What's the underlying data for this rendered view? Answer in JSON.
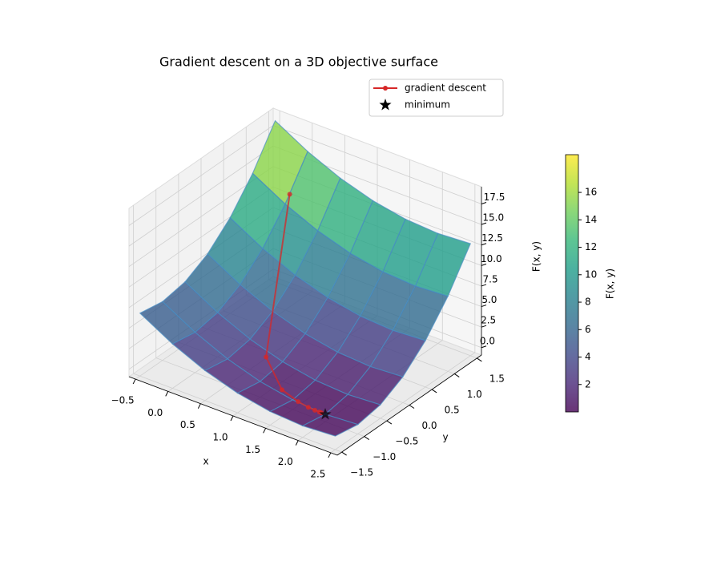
{
  "chart_data": {
    "type": "surface3d",
    "title": "Gradient descent on a 3D objective surface",
    "xlabel": "x",
    "ylabel": "y",
    "zlabel": "F(x, y)",
    "xlim": [
      -0.6,
      2.6
    ],
    "ylim": [
      -1.6,
      1.6
    ],
    "zlim": [
      -0.9,
      19.6
    ],
    "xticks": [
      {
        "value": -0.5,
        "label": "−0.5"
      },
      {
        "value": 0,
        "label": "0.0"
      },
      0.5,
      {
        "value": 1,
        "label": "1.0"
      },
      1.5,
      {
        "value": 2,
        "label": "2.0"
      },
      2.5
    ],
    "yticks": [
      {
        "value": -1.5,
        "label": "−1.5"
      },
      {
        "value": -1,
        "label": "−1.0"
      },
      {
        "value": -0.5,
        "label": "−0.5"
      },
      {
        "value": 0,
        "label": "0.0"
      },
      0.5,
      {
        "value": 1,
        "label": "1.0"
      },
      1.5
    ],
    "zticks": [
      {
        "value": 0,
        "label": "0.0"
      },
      2.5,
      {
        "value": 5,
        "label": "5.0"
      },
      7.5,
      {
        "value": 10,
        "label": "10.0"
      },
      12.5,
      {
        "value": 15,
        "label": "15.0"
      },
      17.5
    ],
    "grid": true,
    "surface": {
      "colormap": "viridis",
      "x": [
        -0.5,
        0,
        0.5,
        1,
        1.5,
        2,
        2.5
      ],
      "y": [
        -1.5,
        -1,
        -0.5,
        0,
        0.5,
        1,
        1.5
      ],
      "z": [
        [
          6.75,
          4.5,
          2.75,
          1.5,
          0.75,
          0.5,
          0.75
        ],
        [
          6.25,
          4,
          2.25,
          1,
          0.25,
          0,
          0.25
        ],
        [
          6.75,
          4.5,
          2.75,
          1.5,
          0.75,
          0.5,
          0.75
        ],
        [
          8.25,
          6,
          4.25,
          3,
          2.25,
          2,
          2.25
        ],
        [
          10.75,
          8.5,
          6.75,
          5.5,
          4.75,
          4.5,
          4.75
        ],
        [
          14.25,
          12,
          10.25,
          9,
          8.25,
          8,
          8.25
        ],
        [
          18.75,
          16.5,
          14.75,
          13.5,
          12.75,
          12.5,
          12.75
        ]
      ]
    },
    "colorbar": {
      "label": "F(x, y)",
      "lim": [
        0,
        18.75
      ],
      "ticks": [
        2,
        4,
        6,
        8,
        10,
        12,
        14,
        16
      ]
    },
    "series": [
      {
        "name": "gradient descent",
        "color": "#d62728",
        "x": [
          0,
          0.8,
          1.28,
          1.57,
          1.74,
          1.84,
          1.91,
          1.94
        ],
        "y": [
          1.1,
          -0.58,
          -0.92,
          -0.98,
          -1,
          -1,
          -1,
          -1
        ],
        "z": [
          12.82,
          1.79,
          0.53,
          0.19,
          0.07,
          0.02,
          0.01,
          0
        ]
      },
      {
        "name": "minimum",
        "color": "#000000",
        "x": [
          2
        ],
        "y": [
          -1
        ],
        "z": [
          0
        ]
      }
    ],
    "legend": "upper right"
  }
}
